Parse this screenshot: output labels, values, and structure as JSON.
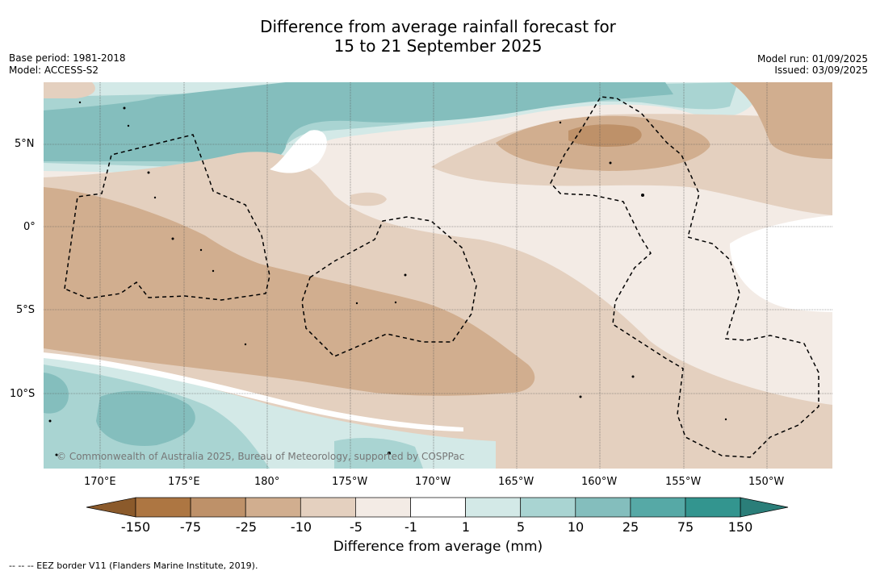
{
  "title": {
    "line1": "Difference from average rainfall forecast for",
    "line2": "15 to 21 September 2025"
  },
  "meta": {
    "base_period": "Base period: 1981-2018",
    "model": "Model: ACCESS-S2",
    "model_run": "Model run: 01/09/2025",
    "issued": "Issued: 03/09/2025"
  },
  "axes": {
    "lat_labels": [
      "5°N",
      "0°",
      "5°S",
      "10°S"
    ],
    "lon_labels": [
      "170°E",
      "175°E",
      "180°",
      "175°W",
      "170°W",
      "165°W",
      "160°W",
      "155°W",
      "150°W"
    ]
  },
  "copyright": "© Commonwealth of Australia 2025, Bureau of Meteorology, supported by COSPPac",
  "colorbar": {
    "labels": [
      "-150",
      "-75",
      "-25",
      "-10",
      "-5",
      "-1",
      "1",
      "5",
      "10",
      "25",
      "75",
      "150"
    ],
    "title": "Difference from average (mm)",
    "colors": [
      "#8b5a2b",
      "#ad7642",
      "#be9169",
      "#d1ae8f",
      "#e4d0bf",
      "#f3ebe5",
      "#ffffff",
      "#d3e9e7",
      "#a9d4d2",
      "#84bebd",
      "#56a9a6",
      "#33958f",
      "#2b7e79"
    ]
  },
  "footnote": "--  --  -- EEZ border V11 (Flanders Marine Institute, 2019)."
}
